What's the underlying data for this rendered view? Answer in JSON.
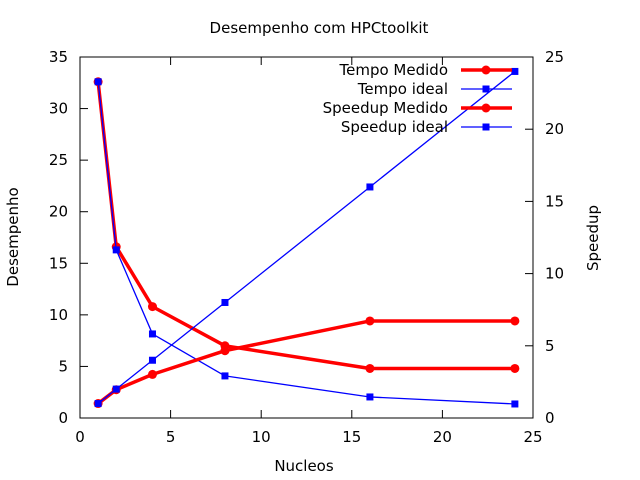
{
  "chart_data": {
    "type": "line",
    "title": "Desempenho com HPCtoolkit",
    "xlabel": "Nucleos",
    "ylabel": "Desempenho",
    "y2label": "Speedup",
    "xlim": [
      0,
      25
    ],
    "ylim": [
      0,
      35
    ],
    "y2lim": [
      0,
      25
    ],
    "xticks": [
      "0",
      "5",
      "10",
      "15",
      "20",
      "25"
    ],
    "yticks": [
      "0",
      "5",
      "10",
      "15",
      "20",
      "25",
      "30",
      "35"
    ],
    "y2ticks": [
      "0",
      "5",
      "10",
      "15",
      "20",
      "25"
    ],
    "grid": false,
    "legend_position": "top-right",
    "series": [
      {
        "name": "Tempo Medido",
        "axis": "y",
        "color": "#ff0000",
        "marker": "circle",
        "x": [
          1,
          2,
          4,
          8,
          16,
          24
        ],
        "y": [
          32.6,
          16.6,
          10.8,
          7.0,
          4.8,
          4.8
        ]
      },
      {
        "name": "Tempo ideal",
        "axis": "y",
        "color": "#0000ff",
        "marker": "square",
        "x": [
          1,
          2,
          4,
          8,
          16,
          24
        ],
        "y": [
          32.6,
          16.3,
          8.15,
          4.08,
          2.04,
          1.36
        ]
      },
      {
        "name": "Speedup Medido",
        "axis": "y2",
        "color": "#ff0000",
        "marker": "circle",
        "x": [
          1,
          2,
          4,
          8,
          16,
          24
        ],
        "y": [
          1.0,
          1.96,
          3.02,
          4.66,
          6.72,
          6.72
        ]
      },
      {
        "name": "Speedup ideal",
        "axis": "y2",
        "color": "#0000ff",
        "marker": "square",
        "x": [
          1,
          2,
          4,
          8,
          16,
          24
        ],
        "y": [
          1,
          2,
          4,
          8,
          16,
          24
        ]
      }
    ]
  }
}
